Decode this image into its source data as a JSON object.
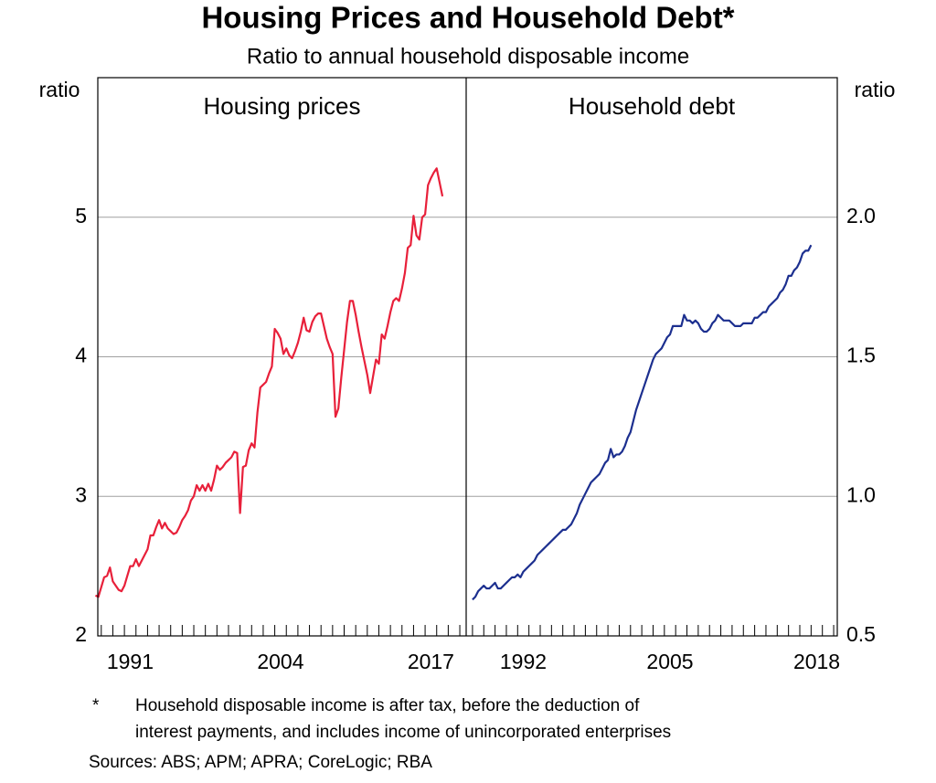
{
  "title": "Housing Prices and Household Debt*",
  "subtitle": "Ratio to annual household disposable income",
  "chart_data": [
    {
      "type": "line",
      "title": "Housing prices",
      "ylabel": "ratio",
      "y_axis_side": "left",
      "grid": true,
      "ylim": [
        2,
        6
      ],
      "yticks": [
        2,
        3,
        4,
        5
      ],
      "xlim": [
        1988.7,
        2020.55
      ],
      "xticks": [
        {
          "value": 1991.5,
          "label": "1991"
        },
        {
          "value": 2004.5,
          "label": "2004"
        },
        {
          "value": 2017.5,
          "label": "2017"
        }
      ],
      "x": [
        1988.5,
        1988.75,
        1989,
        1989.25,
        1989.5,
        1989.75,
        1990,
        1990.25,
        1990.5,
        1990.75,
        1991,
        1991.25,
        1991.5,
        1991.75,
        1992,
        1992.25,
        1992.5,
        1992.75,
        1993,
        1993.25,
        1993.5,
        1993.75,
        1994,
        1994.25,
        1994.5,
        1994.75,
        1995,
        1995.25,
        1995.5,
        1995.75,
        1996,
        1996.25,
        1996.5,
        1996.75,
        1997,
        1997.25,
        1997.5,
        1997.75,
        1998,
        1998.25,
        1998.5,
        1998.75,
        1999,
        1999.25,
        1999.5,
        1999.75,
        2000,
        2000.25,
        2000.5,
        2000.75,
        2001,
        2001.25,
        2001.5,
        2001.75,
        2002,
        2002.25,
        2002.5,
        2002.75,
        2003,
        2003.25,
        2003.5,
        2003.75,
        2004,
        2004.25,
        2004.5,
        2004.75,
        2005,
        2005.25,
        2005.5,
        2005.75,
        2006,
        2006.25,
        2006.5,
        2006.75,
        2007,
        2007.25,
        2007.5,
        2007.75,
        2008,
        2008.25,
        2008.5,
        2008.75,
        2009,
        2009.25,
        2009.5,
        2009.75,
        2010,
        2010.25,
        2010.5,
        2010.75,
        2011,
        2011.25,
        2011.5,
        2011.75,
        2012,
        2012.25,
        2012.5,
        2012.75,
        2013,
        2013.25,
        2013.5,
        2013.75,
        2014,
        2014.25,
        2014.5,
        2014.75,
        2015,
        2015.25,
        2015.5,
        2015.75,
        2016,
        2016.25,
        2016.5,
        2016.75,
        2017,
        2017.25,
        2017.5,
        2017.75,
        2018,
        2018.25,
        2018.5
      ],
      "series": [
        {
          "color": "#e8203a",
          "values": [
            2.29,
            2.28,
            2.35,
            2.42,
            2.43,
            2.49,
            2.39,
            2.36,
            2.33,
            2.32,
            2.36,
            2.43,
            2.5,
            2.5,
            2.55,
            2.5,
            2.54,
            2.58,
            2.62,
            2.72,
            2.72,
            2.78,
            2.83,
            2.77,
            2.81,
            2.77,
            2.75,
            2.73,
            2.74,
            2.78,
            2.83,
            2.86,
            2.9,
            2.97,
            3.0,
            3.08,
            3.04,
            3.08,
            3.04,
            3.09,
            3.04,
            3.12,
            3.22,
            3.19,
            3.21,
            3.24,
            3.26,
            3.28,
            3.32,
            3.31,
            2.88,
            3.21,
            3.22,
            3.33,
            3.38,
            3.35,
            3.6,
            3.78,
            3.8,
            3.82,
            3.88,
            3.93,
            4.2,
            4.17,
            4.13,
            4.02,
            4.06,
            4.01,
            3.99,
            4.04,
            4.1,
            4.18,
            4.28,
            4.19,
            4.18,
            4.25,
            4.29,
            4.31,
            4.31,
            4.22,
            4.13,
            4.07,
            4.02,
            3.57,
            3.63,
            3.85,
            4.05,
            4.25,
            4.4,
            4.4,
            4.3,
            4.18,
            4.07,
            3.97,
            3.87,
            3.74,
            3.86,
            3.98,
            3.95,
            4.16,
            4.13,
            4.22,
            4.32,
            4.4,
            4.42,
            4.4,
            4.49,
            4.6,
            4.78,
            4.8,
            5.01,
            4.87,
            4.84,
            5.0,
            5.02,
            5.23,
            5.28,
            5.32,
            5.35,
            5.25,
            5.15
          ]
        }
      ]
    },
    {
      "type": "line",
      "title": "Household debt",
      "ylabel": "ratio",
      "y_axis_side": "right",
      "grid": true,
      "ylim": [
        0.5,
        2.5
      ],
      "yticks": [
        0.5,
        {
          "value": 1,
          "label": "1.0"
        },
        1.5,
        {
          "value": 2,
          "label": "2.0"
        }
      ],
      "xlim": [
        1987.44,
        2020.32
      ],
      "xticks": [
        {
          "value": 1992.5,
          "label": "1992"
        },
        {
          "value": 2005.5,
          "label": "2005"
        },
        {
          "value": 2018.5,
          "label": "2018"
        }
      ],
      "x": [
        1988,
        1988.25,
        1988.5,
        1988.75,
        1989,
        1989.25,
        1989.5,
        1989.75,
        1990,
        1990.25,
        1990.5,
        1990.75,
        1991,
        1991.25,
        1991.5,
        1991.75,
        1992,
        1992.25,
        1992.5,
        1992.75,
        1993,
        1993.25,
        1993.5,
        1993.75,
        1994,
        1994.25,
        1994.5,
        1994.75,
        1995,
        1995.25,
        1995.5,
        1995.75,
        1996,
        1996.25,
        1996.5,
        1996.75,
        1997,
        1997.25,
        1997.5,
        1997.75,
        1998,
        1998.25,
        1998.5,
        1998.75,
        1999,
        1999.25,
        1999.5,
        1999.75,
        2000,
        2000.25,
        2000.5,
        2000.75,
        2001,
        2001.25,
        2001.5,
        2001.75,
        2002,
        2002.25,
        2002.5,
        2002.75,
        2003,
        2003.25,
        2003.5,
        2003.75,
        2004,
        2004.25,
        2004.5,
        2004.75,
        2005,
        2005.25,
        2005.5,
        2005.75,
        2006,
        2006.25,
        2006.5,
        2006.75,
        2007,
        2007.25,
        2007.5,
        2007.75,
        2008,
        2008.25,
        2008.5,
        2008.75,
        2009,
        2009.25,
        2009.5,
        2009.75,
        2010,
        2010.25,
        2010.5,
        2010.75,
        2011,
        2011.25,
        2011.5,
        2011.75,
        2012,
        2012.25,
        2012.5,
        2012.75,
        2013,
        2013.25,
        2013.5,
        2013.75,
        2014,
        2014.25,
        2014.5,
        2014.75,
        2015,
        2015.25,
        2015.5,
        2015.75,
        2016,
        2016.25,
        2016.5,
        2016.75,
        2017,
        2017.25,
        2017.5,
        2017.75,
        2018
      ],
      "series": [
        {
          "color": "#1c2f8f",
          "values": [
            0.63,
            0.64,
            0.66,
            0.67,
            0.68,
            0.67,
            0.67,
            0.68,
            0.69,
            0.67,
            0.67,
            0.68,
            0.69,
            0.7,
            0.71,
            0.71,
            0.72,
            0.71,
            0.73,
            0.74,
            0.75,
            0.76,
            0.77,
            0.79,
            0.8,
            0.81,
            0.82,
            0.83,
            0.84,
            0.85,
            0.86,
            0.87,
            0.88,
            0.88,
            0.89,
            0.9,
            0.92,
            0.94,
            0.97,
            0.99,
            1.01,
            1.03,
            1.05,
            1.06,
            1.07,
            1.08,
            1.1,
            1.12,
            1.13,
            1.17,
            1.14,
            1.15,
            1.15,
            1.16,
            1.18,
            1.21,
            1.23,
            1.27,
            1.31,
            1.34,
            1.37,
            1.4,
            1.43,
            1.46,
            1.49,
            1.51,
            1.52,
            1.53,
            1.55,
            1.57,
            1.58,
            1.61,
            1.61,
            1.61,
            1.61,
            1.65,
            1.63,
            1.63,
            1.62,
            1.63,
            1.62,
            1.6,
            1.59,
            1.59,
            1.6,
            1.62,
            1.63,
            1.65,
            1.64,
            1.63,
            1.63,
            1.63,
            1.62,
            1.61,
            1.61,
            1.61,
            1.62,
            1.62,
            1.62,
            1.62,
            1.64,
            1.64,
            1.65,
            1.66,
            1.66,
            1.68,
            1.69,
            1.7,
            1.71,
            1.73,
            1.74,
            1.76,
            1.79,
            1.79,
            1.81,
            1.82,
            1.84,
            1.87,
            1.88,
            1.88,
            1.9
          ]
        }
      ]
    }
  ],
  "footnote": {
    "marker": "*",
    "lines": [
      "Household disposable income is after tax, before the deduction of",
      "interest payments, and includes income of unincorporated enterprises"
    ]
  },
  "sources": "Sources: ABS; APM; APRA; CoreLogic; RBA"
}
